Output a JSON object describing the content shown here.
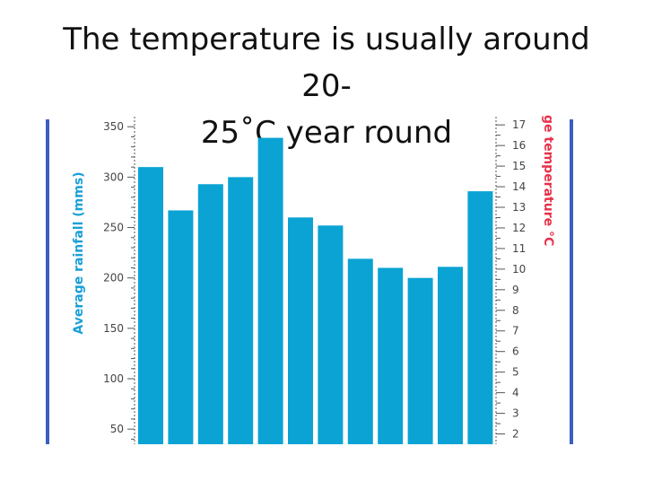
{
  "slide": {
    "title_line1": "The temperature is usually around 20-",
    "title_line2": "25˚C  year round"
  },
  "chart_data": {
    "type": "bar",
    "categories": [
      "",
      "",
      "",
      "",
      "",
      "",
      "",
      "",
      "",
      "",
      "",
      ""
    ],
    "values": [
      310,
      267,
      293,
      300,
      339,
      260,
      252,
      219,
      210,
      200,
      211,
      286
    ],
    "ylabel": "Average rainfall (mms)",
    "y2label": "ge temperature °C",
    "ylim": [
      35,
      360
    ],
    "yticks": [
      50,
      100,
      150,
      200,
      250,
      300,
      350
    ],
    "y2lim": [
      1.5,
      17.4
    ],
    "y2ticks": [
      2,
      3,
      4,
      5,
      6,
      7,
      8,
      9,
      10,
      11,
      12,
      13,
      14,
      15,
      16,
      17
    ],
    "bar_color": "#0aa3d4",
    "left_label_color": "#1aa0d8",
    "right_label_color": "#e8324a",
    "frame_color": "#3b5fc0",
    "grid": false
  }
}
